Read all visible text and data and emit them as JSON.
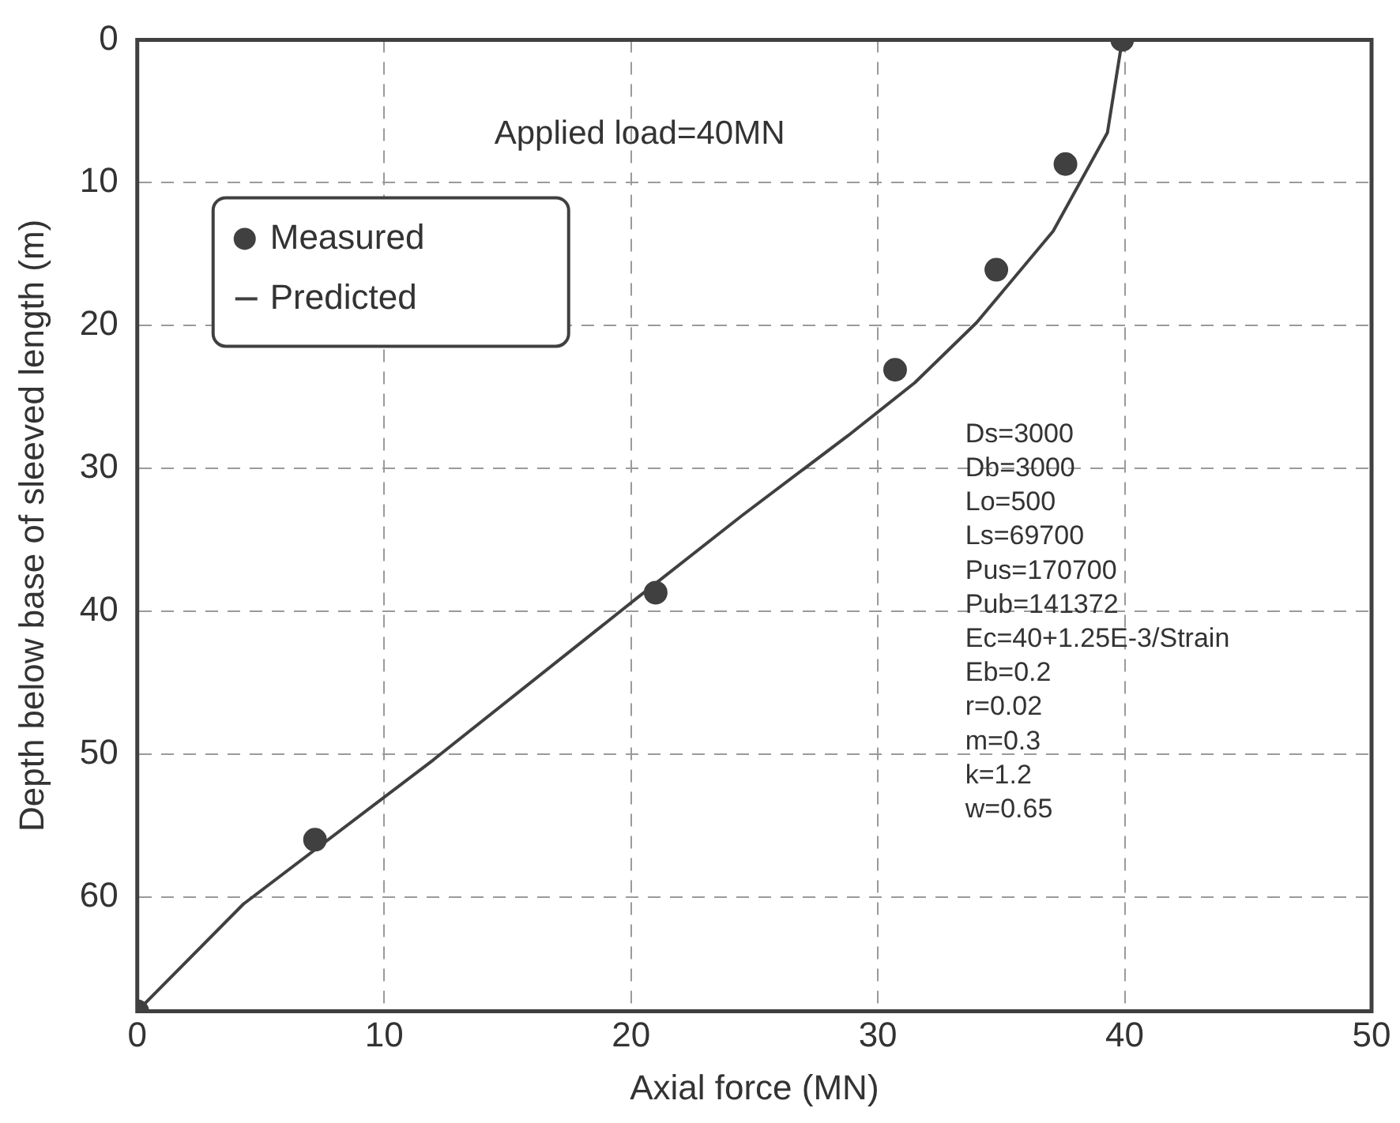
{
  "chart_data": {
    "type": "scatter",
    "xlabel": "Axial force (MN)",
    "ylabel": "Depth below base of sleeved length (m)",
    "xlim": [
      0,
      50
    ],
    "xticks": [
      0,
      10,
      20,
      30,
      40,
      50
    ],
    "ylim": [
      68,
      0
    ],
    "yticks": [
      0,
      10,
      20,
      30,
      40,
      50,
      60
    ],
    "grid": true,
    "legend": "top left",
    "series": [
      {
        "name": "Measured",
        "marker": "circle",
        "color": "#404040",
        "x": [
          39.9,
          37.6,
          34.8,
          30.7,
          21.0,
          7.2,
          0
        ],
        "values": [
          0,
          8.7,
          16.1,
          23.1,
          38.7,
          56.0,
          68
        ]
      },
      {
        "name": "Predicted",
        "type": "line",
        "marker": "none",
        "line_style": "solid",
        "color": "#404040",
        "x": [
          39.9,
          39.3,
          37.1,
          34.0,
          31.5,
          28.8,
          24.5,
          20.3,
          12.0,
          4.3,
          0
        ],
        "values": [
          0,
          6.5,
          13.4,
          19.8,
          24.0,
          27.7,
          33.3,
          39.0,
          50.4,
          60.5,
          68
        ]
      }
    ],
    "annotations": [
      "Applied load=40MN",
      "Ds=3000",
      "Db=3000",
      "Lo=500",
      "Ls=69700",
      "Pus=170700",
      "Pub=141372",
      "Ec=40+1.25E-3/Strain",
      "Eb=0.2",
      "r=0.02",
      "m=0.3",
      "k=1.2",
      "w=0.65"
    ]
  }
}
